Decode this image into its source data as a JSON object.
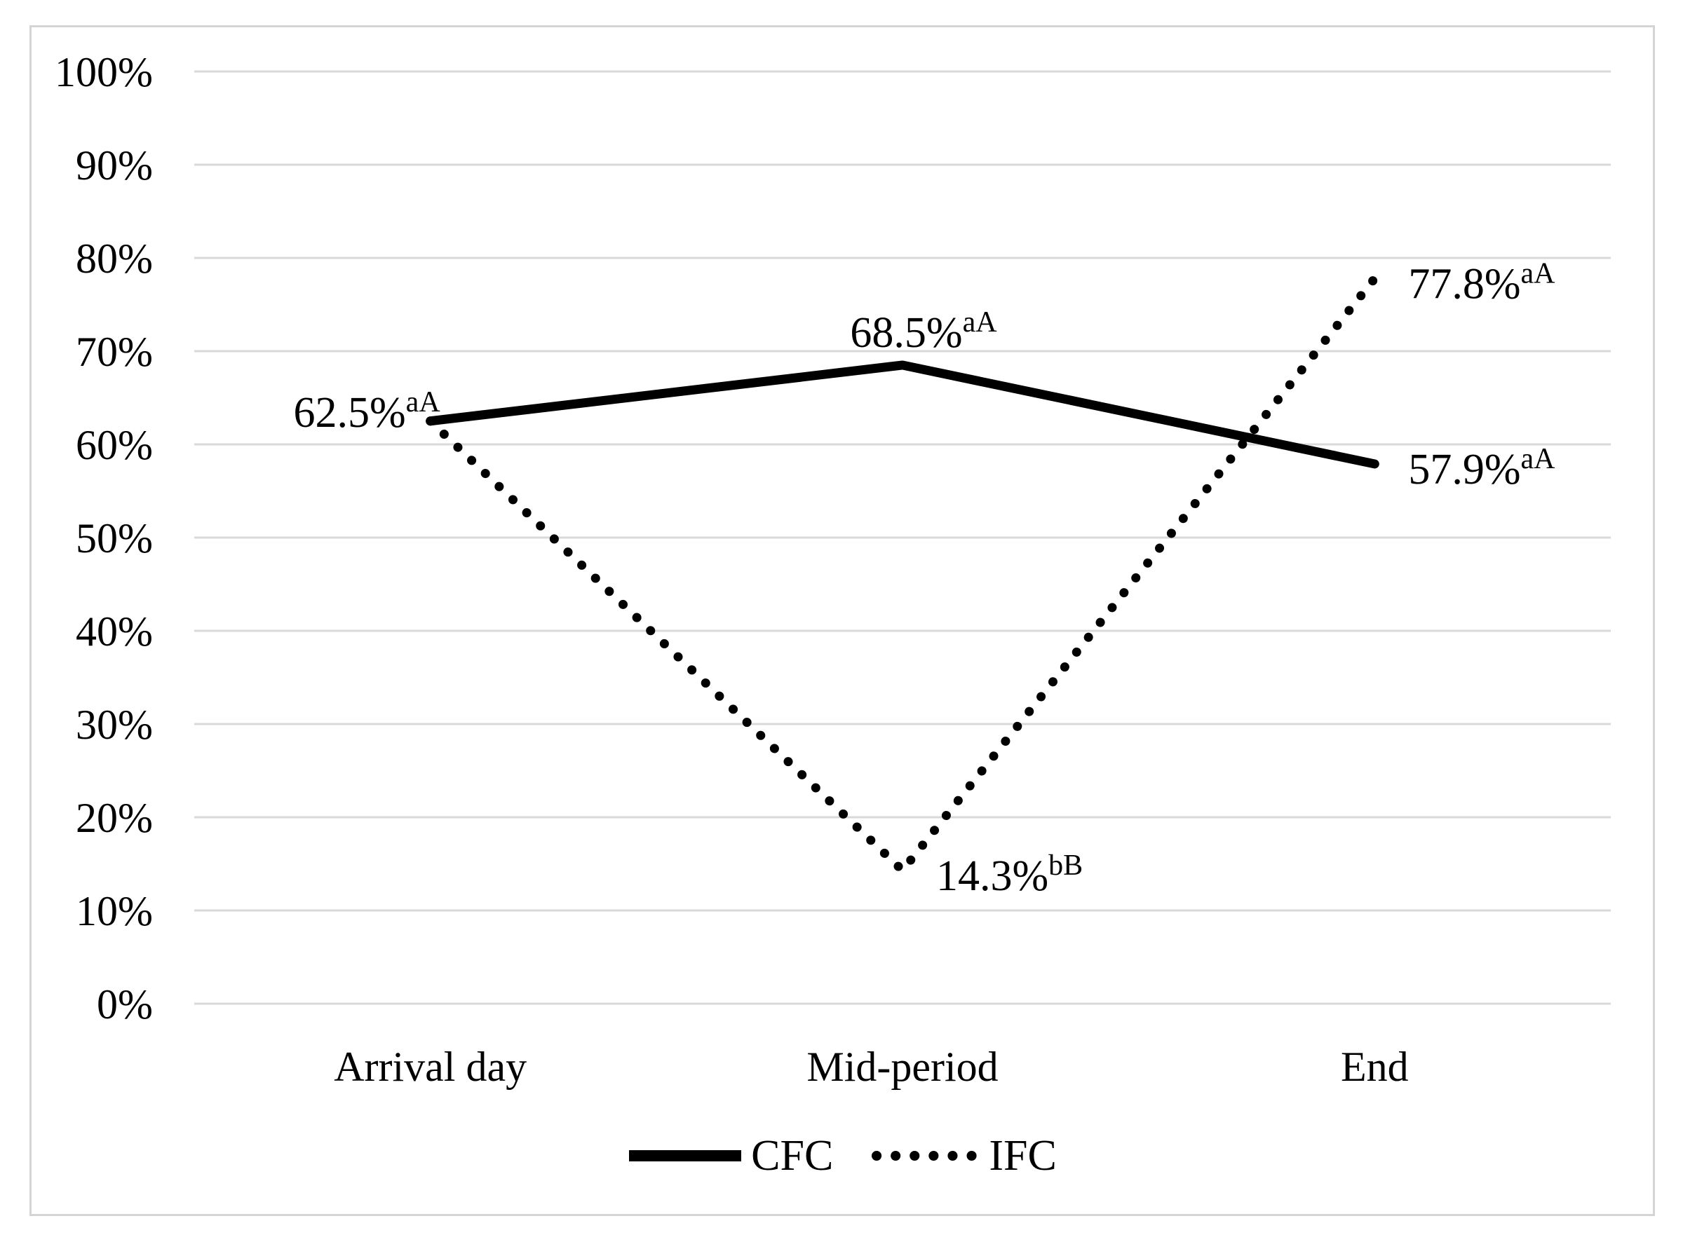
{
  "chart_data": {
    "type": "line",
    "categories": [
      "Arrival day",
      "Mid-period",
      "End"
    ],
    "series": [
      {
        "name": "CFC",
        "line_style": "solid",
        "color": "#000000",
        "values": [
          62.5,
          68.5,
          57.9
        ],
        "point_labels": [
          {
            "text": "62.5%",
            "sup": "aA",
            "pos": "left"
          },
          {
            "text": "68.5%",
            "sup": "aA",
            "pos": "above"
          },
          {
            "text": "57.9%",
            "sup": "aA",
            "pos": "right"
          }
        ]
      },
      {
        "name": "IFC",
        "line_style": "dotted",
        "color": "#000000",
        "values": [
          62.5,
          14.3,
          77.8
        ],
        "point_labels": [
          null,
          {
            "text": "14.3%",
            "sup": "bB",
            "pos": "right"
          },
          {
            "text": "77.8%",
            "sup": "aA",
            "pos": "right"
          }
        ]
      }
    ],
    "y_axis": {
      "min": 0,
      "max": 100,
      "step": 10,
      "tick_labels": [
        "0%",
        "10%",
        "20%",
        "30%",
        "40%",
        "50%",
        "60%",
        "70%",
        "80%",
        "90%",
        "100%"
      ]
    },
    "x_axis": {
      "labels": [
        "Arrival day",
        "Mid-period",
        "End"
      ]
    },
    "grid": true,
    "legend_position": "bottom-center",
    "colors": {
      "series_line": "#000000",
      "gridline": "#d9d9d9",
      "figure_border": "#d4d4d4",
      "text": "#000000"
    }
  }
}
